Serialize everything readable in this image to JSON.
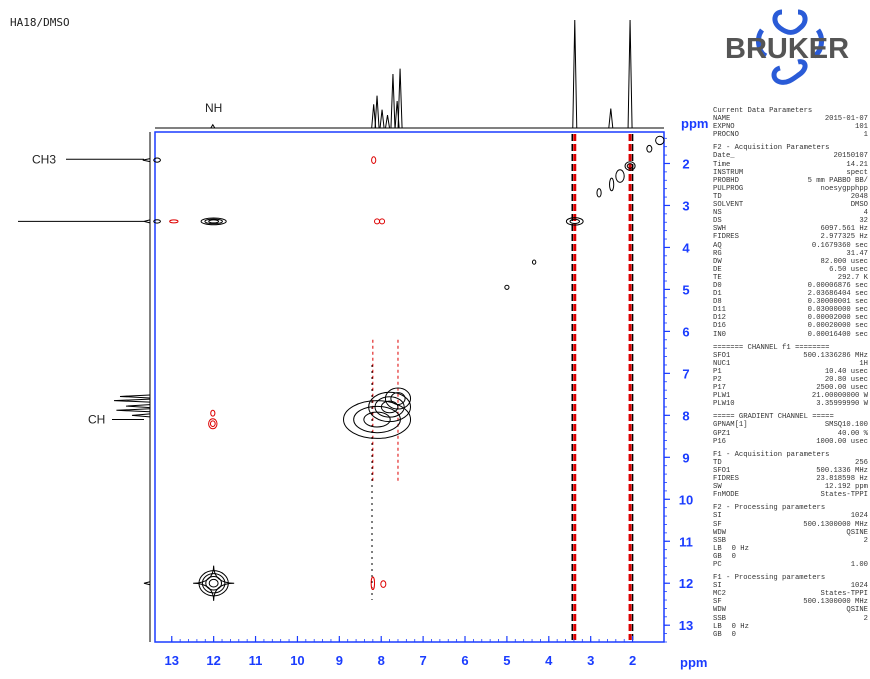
{
  "page_title": "HA18/DMSO",
  "brand": "BRUKER",
  "colors": {
    "axis": "#1a3cff",
    "positive": "#000000",
    "negative": "#dd0000",
    "text": "#222222"
  },
  "chart_data": {
    "type": "2D NMR contour plot (NOESY)",
    "x_axis": {
      "unit": "ppm",
      "range": [
        13.4,
        1.25
      ],
      "ticks": [
        13,
        12,
        11,
        10,
        9,
        8,
        7,
        6,
        5,
        4,
        3,
        2
      ]
    },
    "y_axis": {
      "unit": "ppm",
      "range": [
        1.25,
        13.4
      ],
      "ticks": [
        2,
        3,
        4,
        5,
        6,
        7,
        8,
        9,
        10,
        11,
        12,
        13
      ]
    },
    "annotations": [
      {
        "text": "NH",
        "at_ppm": 12.0,
        "axis": "top"
      },
      {
        "text": "CH3",
        "at_ppm": 1.9,
        "axis": "left"
      },
      {
        "text": "CH",
        "at_ppm": 8.1,
        "axis": "left"
      }
    ],
    "top_projection_peaks": [
      {
        "ppm": 12.02,
        "height": 0.03
      },
      {
        "ppm": 8.18,
        "height": 0.22
      },
      {
        "ppm": 8.1,
        "height": 0.3
      },
      {
        "ppm": 7.98,
        "height": 0.17
      },
      {
        "ppm": 7.85,
        "height": 0.12
      },
      {
        "ppm": 7.72,
        "height": 0.5
      },
      {
        "ppm": 7.62,
        "height": 0.25
      },
      {
        "ppm": 7.55,
        "height": 0.55
      },
      {
        "ppm": 3.38,
        "height": 1.0
      },
      {
        "ppm": 2.52,
        "height": 0.18
      },
      {
        "ppm": 2.06,
        "height": 1.0
      }
    ],
    "left_projection_peaks": [
      {
        "ppm": 1.92,
        "height": 0.06
      },
      {
        "ppm": 3.38,
        "height": 0.05
      },
      {
        "ppm": 7.55,
        "height": 0.25
      },
      {
        "ppm": 7.65,
        "height": 0.3
      },
      {
        "ppm": 7.78,
        "height": 0.2
      },
      {
        "ppm": 7.88,
        "height": 0.28
      },
      {
        "ppm": 8.0,
        "height": 0.15
      },
      {
        "ppm": 12.0,
        "height": 0.05
      }
    ],
    "positive_contours": [
      {
        "x": 13.35,
        "y": 1.92,
        "rx": 0.08,
        "ry": 0.05
      },
      {
        "x": 13.35,
        "y": 3.38,
        "rx": 0.08,
        "ry": 0.04
      },
      {
        "x": 12.0,
        "y": 3.38,
        "rx": 0.3,
        "ry": 0.08,
        "levels": 3
      },
      {
        "x": 12.0,
        "y": 12.0,
        "rx": 0.35,
        "ry": 0.3,
        "levels": 4,
        "star": true
      },
      {
        "x": 8.1,
        "y": 8.1,
        "rx": 0.8,
        "ry": 0.45,
        "levels": 3
      },
      {
        "x": 7.8,
        "y": 7.8,
        "rx": 0.5,
        "ry": 0.35,
        "levels": 3
      },
      {
        "x": 7.6,
        "y": 7.6,
        "rx": 0.3,
        "ry": 0.25,
        "levels": 2
      },
      {
        "x": 3.38,
        "y": 3.38,
        "rx": 0.2,
        "ry": 0.09,
        "levels": 2
      },
      {
        "x": 2.06,
        "y": 2.06,
        "rx": 0.12,
        "ry": 0.1,
        "levels": 2
      },
      {
        "x": 2.3,
        "y": 2.3,
        "rx": 0.1,
        "ry": 0.15
      },
      {
        "x": 2.5,
        "y": 2.5,
        "rx": 0.05,
        "ry": 0.15
      },
      {
        "x": 2.8,
        "y": 2.7,
        "rx": 0.05,
        "ry": 0.1
      },
      {
        "x": 4.35,
        "y": 4.35,
        "rx": 0.04,
        "ry": 0.05
      },
      {
        "x": 5.0,
        "y": 4.95,
        "rx": 0.05,
        "ry": 0.05
      },
      {
        "x": 1.6,
        "y": 1.65,
        "rx": 0.06,
        "ry": 0.08
      },
      {
        "x": 1.35,
        "y": 1.45,
        "rx": 0.1,
        "ry": 0.1
      }
    ],
    "negative_contours": [
      {
        "x": 12.95,
        "y": 3.38,
        "rx": 0.1,
        "ry": 0.035
      },
      {
        "x": 12.02,
        "y": 8.2,
        "rx": 0.1,
        "ry": 0.12,
        "levels": 2
      },
      {
        "x": 12.02,
        "y": 7.95,
        "rx": 0.05,
        "ry": 0.07
      },
      {
        "x": 8.18,
        "y": 1.92,
        "rx": 0.05,
        "ry": 0.08
      },
      {
        "x": 8.1,
        "y": 3.38,
        "rx": 0.06,
        "ry": 0.06
      },
      {
        "x": 7.98,
        "y": 3.38,
        "rx": 0.06,
        "ry": 0.06
      },
      {
        "x": 7.95,
        "y": 12.02,
        "rx": 0.06,
        "ry": 0.08
      },
      {
        "x": 8.2,
        "y": 12.0,
        "rx": 0.04,
        "ry": 0.15
      }
    ],
    "t1_noise_columns": [
      {
        "ppm": 3.38,
        "color": "negative",
        "width": 3
      },
      {
        "ppm": 3.44,
        "color": "positive",
        "width": 1.5
      },
      {
        "ppm": 2.06,
        "color": "negative",
        "width": 3
      },
      {
        "ppm": 2.0,
        "color": "positive",
        "width": 1.5
      }
    ]
  },
  "parameters": {
    "current": {
      "title": "Current Data Parameters",
      "rows": [
        [
          "NAME",
          "2015-01-07"
        ],
        [
          "EXPNO",
          "101"
        ],
        [
          "PROCNO",
          "1"
        ]
      ]
    },
    "f2_acq": {
      "title": "F2 - Acquisition Parameters",
      "rows": [
        [
          "Date_",
          "20150107"
        ],
        [
          "Time",
          "14.21"
        ],
        [
          "INSTRUM",
          "spect"
        ],
        [
          "PROBHD",
          "5 mm PABBO BB/"
        ],
        [
          "PULPROG",
          "noesygpphpp"
        ],
        [
          "TD",
          "2048"
        ],
        [
          "SOLVENT",
          "DMSO"
        ],
        [
          "NS",
          "4"
        ],
        [
          "DS",
          "32"
        ],
        [
          "SWH",
          "6097.561 Hz"
        ],
        [
          "FIDRES",
          "2.977325 Hz"
        ],
        [
          "AQ",
          "0.1679360 sec"
        ],
        [
          "RG",
          "31.47"
        ],
        [
          "DW",
          "82.000 usec"
        ],
        [
          "DE",
          "6.50 usec"
        ],
        [
          "TE",
          "292.7 K"
        ],
        [
          "D0",
          "0.00006876 sec"
        ],
        [
          "D1",
          "2.03686404 sec"
        ],
        [
          "D8",
          "0.30000001 sec"
        ],
        [
          "D11",
          "0.03000000 sec"
        ],
        [
          "D12",
          "0.00002000 sec"
        ],
        [
          "D16",
          "0.00020000 sec"
        ],
        [
          "IN0",
          "0.00016400 sec"
        ]
      ]
    },
    "channel_f1": {
      "title": "======= CHANNEL f1 ========",
      "rows": [
        [
          "SFO1",
          "500.1336286 MHz"
        ],
        [
          "NUC1",
          "1H"
        ],
        [
          "P1",
          "10.40 usec"
        ],
        [
          "P2",
          "20.80 usec"
        ],
        [
          "P17",
          "2500.00 usec"
        ],
        [
          "PLW1",
          "21.00000000 W"
        ],
        [
          "PLW10",
          "3.35999990 W"
        ]
      ]
    },
    "gradient": {
      "title": "===== GRADIENT CHANNEL =====",
      "rows": [
        [
          "GPNAM[1]",
          "SMSQ10.100"
        ],
        [
          "GPZ1",
          "40.00 %"
        ],
        [
          "P16",
          "1000.00 usec"
        ]
      ]
    },
    "f1_acq": {
      "title": "F1 - Acquisition parameters",
      "rows": [
        [
          "TD",
          "256"
        ],
        [
          "SFO1",
          "500.1336 MHz"
        ],
        [
          "FIDRES",
          "23.818598 Hz"
        ],
        [
          "SW",
          "12.192 ppm"
        ],
        [
          "FnMODE",
          "States-TPPI"
        ]
      ]
    },
    "f2_proc": {
      "title": "F2 - Processing parameters",
      "rows": [
        [
          "SI",
          "1024"
        ],
        [
          "SF",
          "500.1300000 MHz"
        ],
        [
          "WDW",
          "QSINE"
        ],
        [
          "SSB",
          "2"
        ],
        [
          "LB",
          "0 Hz"
        ],
        [
          "GB",
          "0"
        ],
        [
          "PC",
          "1.00"
        ]
      ]
    },
    "f1_proc": {
      "title": "F1 - Processing parameters",
      "rows": [
        [
          "SI",
          "1024"
        ],
        [
          "MC2",
          "States-TPPI"
        ],
        [
          "SF",
          "500.1300000 MHz"
        ],
        [
          "WDW",
          "QSINE"
        ],
        [
          "SSB",
          "2"
        ],
        [
          "LB",
          "0 Hz"
        ],
        [
          "GB",
          "0"
        ]
      ]
    }
  }
}
